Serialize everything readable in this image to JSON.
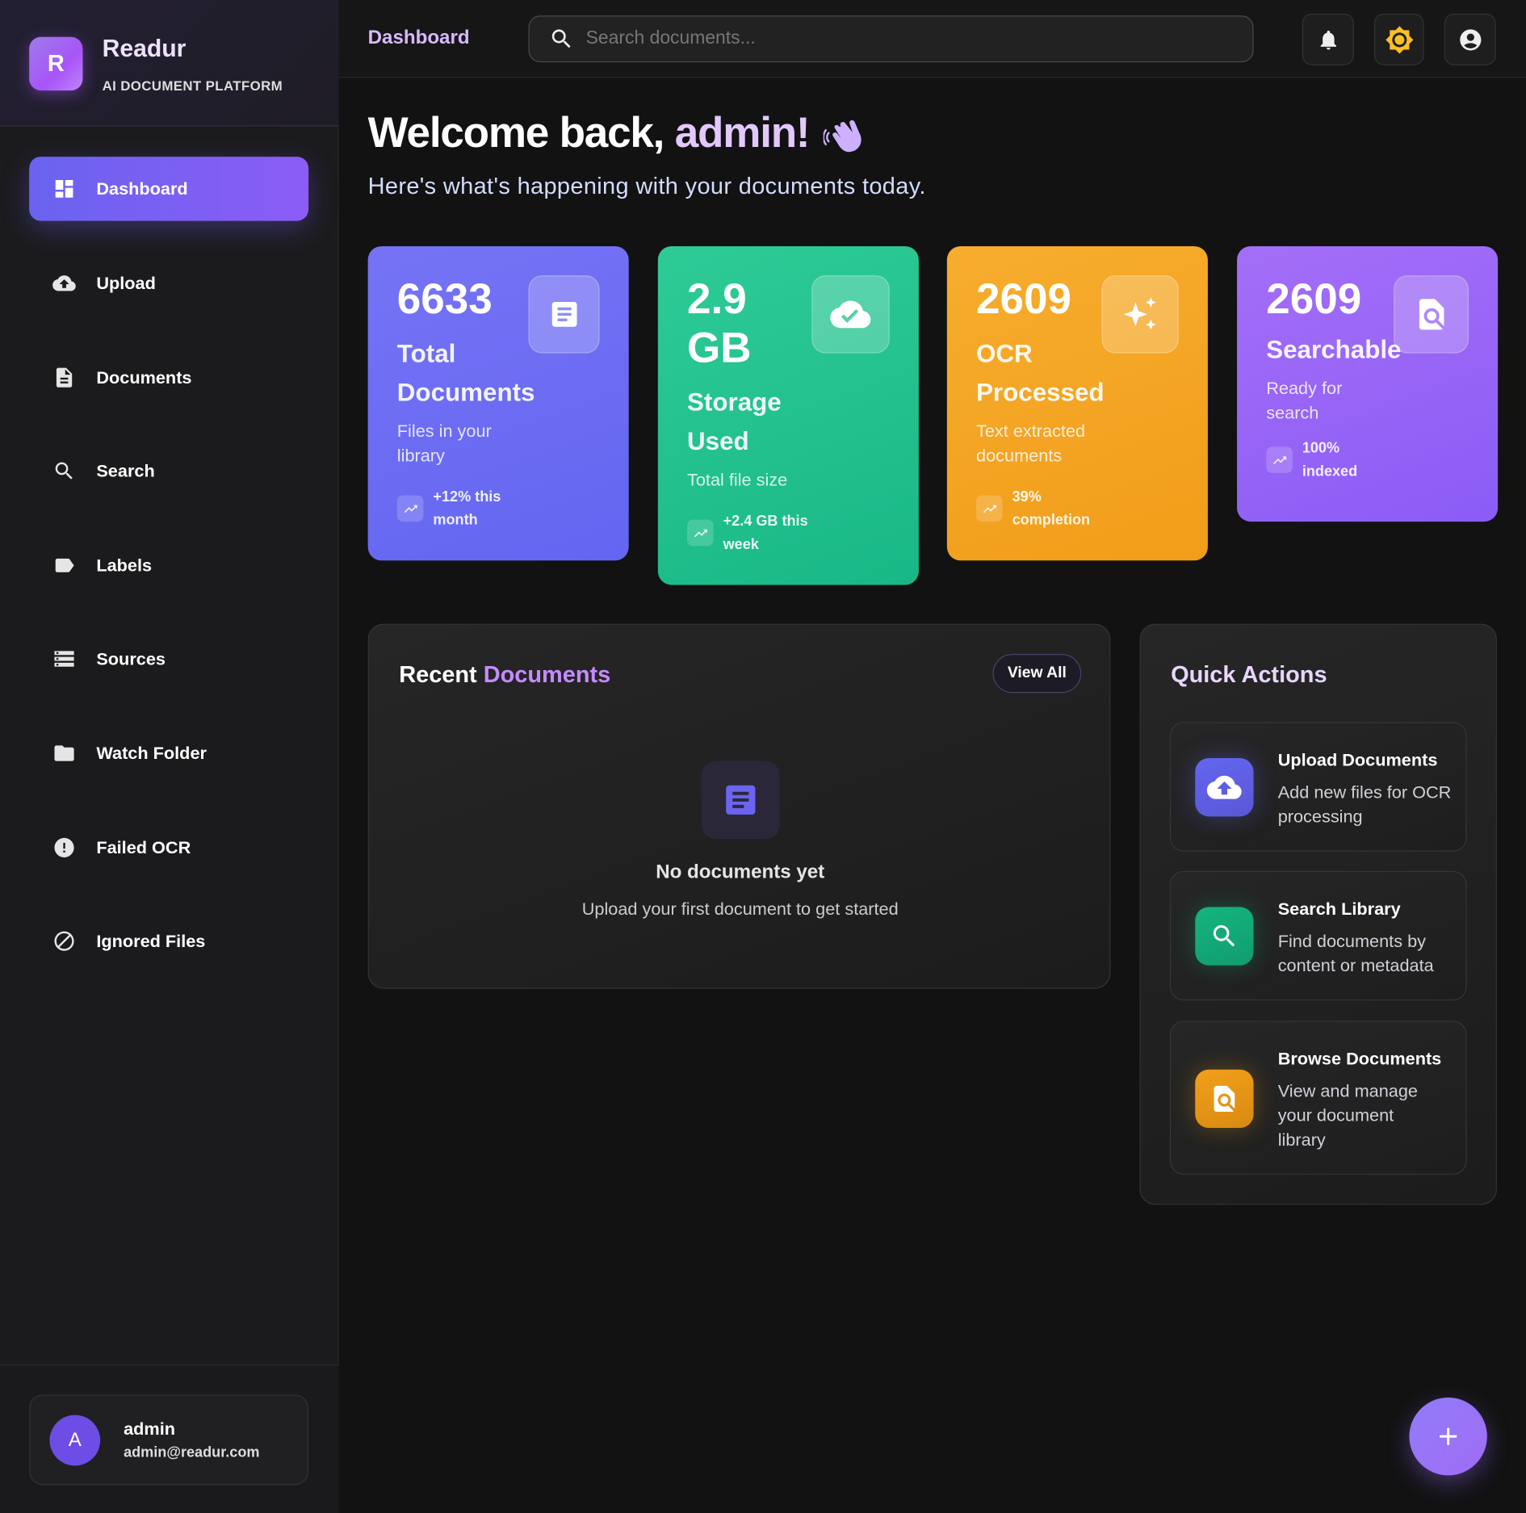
{
  "brand": {
    "logo_letter": "R",
    "name": "Readur",
    "tagline": "AI DOCUMENT PLATFORM"
  },
  "sidebar": {
    "items": [
      {
        "label": "Dashboard",
        "icon": "dashboard-icon",
        "active": true
      },
      {
        "label": "Upload",
        "icon": "cloud-upload-icon"
      },
      {
        "label": "Documents",
        "icon": "document-icon"
      },
      {
        "label": "Search",
        "icon": "search-icon"
      },
      {
        "label": "Labels",
        "icon": "label-icon"
      },
      {
        "label": "Sources",
        "icon": "storage-icon"
      },
      {
        "label": "Watch Folder",
        "icon": "folder-icon"
      },
      {
        "label": "Failed OCR",
        "icon": "error-icon"
      },
      {
        "label": "Ignored Files",
        "icon": "block-icon"
      }
    ]
  },
  "user": {
    "avatar_letter": "A",
    "name": "admin",
    "email": "admin@readur.com"
  },
  "topbar": {
    "breadcrumb": "Dashboard",
    "search_placeholder": "Search documents..."
  },
  "welcome": {
    "prefix": "Welcome back, ",
    "name": "admin!",
    "subtitle": "Here's what's happening with your documents today."
  },
  "stats": [
    {
      "value": "6633",
      "title": "Total Documents",
      "desc": "Files in your library",
      "trend": "+12% this month",
      "color": "#6366f1",
      "icon": "document-icon"
    },
    {
      "value": "2.9 GB",
      "title": "Storage Used",
      "desc": "Total file size",
      "trend": "+2.4 GB this week",
      "color": "#10b981",
      "icon": "cloud-done-icon"
    },
    {
      "value": "2609",
      "title": "OCR Processed",
      "desc": "Text extracted documents",
      "trend": "39% completion",
      "color": "#f59e0b",
      "icon": "sparkle-icon"
    },
    {
      "value": "2609",
      "title": "Searchable",
      "desc": "Ready for search",
      "trend": "100% indexed",
      "color": "#8b5cf6",
      "icon": "find-in-page-icon"
    }
  ],
  "recent": {
    "title_a": "Recent ",
    "title_b": "Documents",
    "view_all": "View All",
    "empty_title": "No documents yet",
    "empty_desc": "Upload your first document to get started"
  },
  "quick_actions": {
    "title": "Quick Actions",
    "items": [
      {
        "title": "Upload Documents",
        "desc": "Add new files for OCR processing",
        "color": "#6366f1",
        "icon": "cloud-upload-icon"
      },
      {
        "title": "Search Library",
        "desc": "Find documents by content or metadata",
        "color": "#10b981",
        "icon": "search-icon"
      },
      {
        "title": "Browse Documents",
        "desc": "View and manage your document library",
        "color": "#f59e0b",
        "icon": "find-in-page-icon"
      }
    ]
  }
}
